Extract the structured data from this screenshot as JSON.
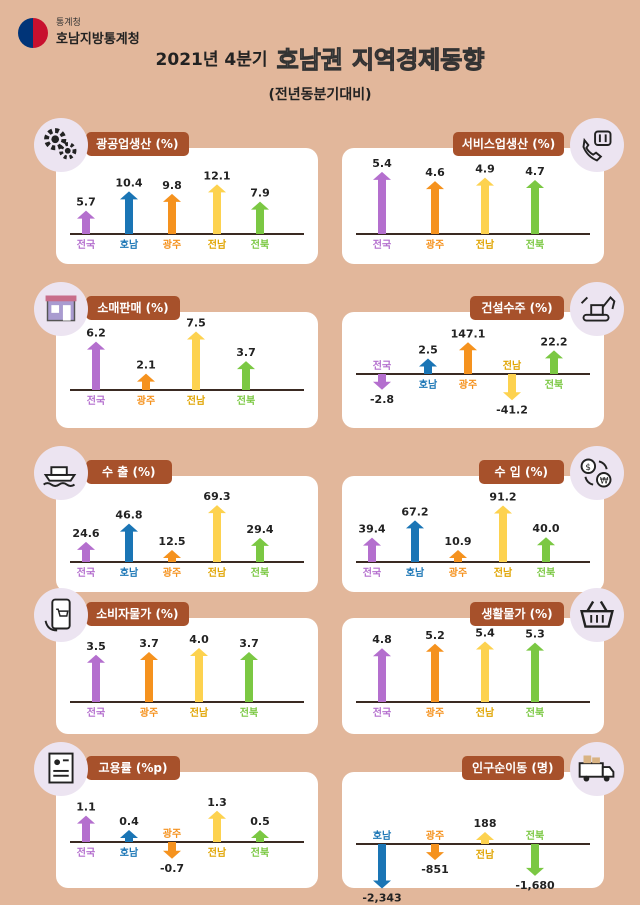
{
  "header": {
    "agency_small": "통계청",
    "agency_name": "호남지방통계청",
    "title_prefix": "2021년 4분기",
    "title_region": "호남권",
    "title_main": "지역경제동향",
    "subtitle": "(전년동분기대비)"
  },
  "colors": {
    "전국": "#b46fce",
    "호남": "#1a75b5",
    "광주": "#f5921e",
    "전남": "#fdd24f",
    "전북": "#7bc843"
  },
  "chart_data": [
    {
      "id": "mining",
      "type": "bar",
      "title": "광공업생산 (%)",
      "icon": "gears-icon",
      "categories": [
        "전국",
        "호남",
        "광주",
        "전남",
        "전북"
      ],
      "values": [
        5.7,
        10.4,
        9.8,
        12.1,
        7.9
      ],
      "labels": [
        "5.7",
        "10.4",
        "9.8",
        "12.1",
        "7.9"
      ]
    },
    {
      "id": "service",
      "type": "bar",
      "title": "서비스업생산 (%)",
      "icon": "phone-service-icon",
      "categories": [
        "전국",
        "광주",
        "전남",
        "전북"
      ],
      "values": [
        5.4,
        4.6,
        4.9,
        4.7
      ],
      "labels": [
        "5.4",
        "4.6",
        "4.9",
        "4.7"
      ]
    },
    {
      "id": "retail",
      "type": "bar",
      "title": "소매판매 (%)",
      "icon": "store-icon",
      "categories": [
        "전국",
        "광주",
        "전남",
        "전북"
      ],
      "values": [
        6.2,
        2.1,
        7.5,
        3.7
      ],
      "labels": [
        "6.2",
        "2.1",
        "7.5",
        "3.7"
      ]
    },
    {
      "id": "construction",
      "type": "bar",
      "title": "건설수주 (%)",
      "icon": "excavator-icon",
      "categories": [
        "전국",
        "호남",
        "광주",
        "전남",
        "전북"
      ],
      "values": [
        -2.8,
        2.5,
        147.1,
        -41.2,
        22.2
      ],
      "labels": [
        "-2.8",
        "2.5",
        "147.1",
        "-41.2",
        "22.2"
      ]
    },
    {
      "id": "export",
      "type": "bar",
      "title": "수 출 (%)",
      "icon": "ship-icon",
      "categories": [
        "전국",
        "호남",
        "광주",
        "전남",
        "전북"
      ],
      "values": [
        24.6,
        46.8,
        12.5,
        69.3,
        29.4
      ],
      "labels": [
        "24.6",
        "46.8",
        "12.5",
        "69.3",
        "29.4"
      ]
    },
    {
      "id": "import",
      "type": "bar",
      "title": "수 입 (%)",
      "icon": "money-exchange-icon",
      "categories": [
        "전국",
        "호남",
        "광주",
        "전남",
        "전북"
      ],
      "values": [
        39.4,
        67.2,
        10.9,
        91.2,
        40.0
      ],
      "labels": [
        "39.4",
        "67.2",
        "10.9",
        "91.2",
        "40.0"
      ]
    },
    {
      "id": "cpi",
      "type": "bar",
      "title": "소비자물가 (%)",
      "icon": "smartphone-cart-icon",
      "categories": [
        "전국",
        "광주",
        "전남",
        "전북"
      ],
      "values": [
        3.5,
        3.7,
        4.0,
        3.7
      ],
      "labels": [
        "3.5",
        "3.7",
        "4.0",
        "3.7"
      ]
    },
    {
      "id": "living",
      "type": "bar",
      "title": "생활물가 (%)",
      "icon": "basket-icon",
      "categories": [
        "전국",
        "광주",
        "전남",
        "전북"
      ],
      "values": [
        4.8,
        5.2,
        5.4,
        5.3
      ],
      "labels": [
        "4.8",
        "5.2",
        "5.4",
        "5.3"
      ]
    },
    {
      "id": "employment",
      "type": "bar",
      "title": "고용률 (%p)",
      "icon": "resume-icon",
      "categories": [
        "전국",
        "호남",
        "광주",
        "전남",
        "전북"
      ],
      "values": [
        1.1,
        0.4,
        -0.7,
        1.3,
        0.5
      ],
      "labels": [
        "1.1",
        "0.4",
        "-0.7",
        "1.3",
        "0.5"
      ]
    },
    {
      "id": "migration",
      "type": "bar",
      "title": "인구순이동 (명)",
      "icon": "moving-truck-icon",
      "categories": [
        "호남",
        "광주",
        "전남",
        "전북"
      ],
      "values": [
        -2343,
        -851,
        188,
        -1680
      ],
      "labels": [
        "-2,343",
        "-851",
        "188",
        "-1,680"
      ]
    }
  ]
}
